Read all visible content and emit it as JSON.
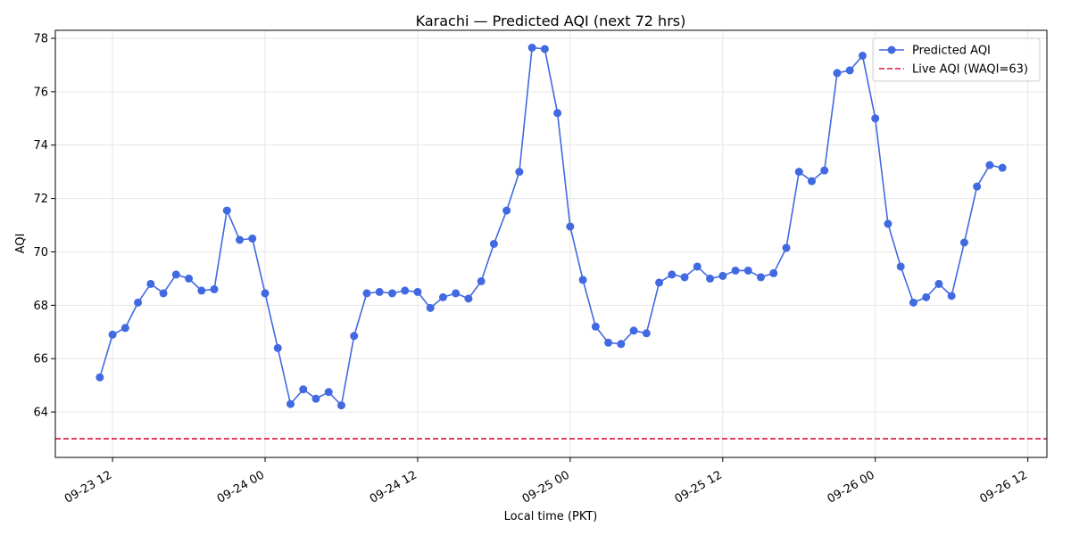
{
  "chart_data": {
    "type": "line",
    "title": "Karachi — Predicted AQI (next 72 hrs)",
    "xlabel": "Local time (PKT)",
    "ylabel": "AQI",
    "x_unit": "hours",
    "xlim": [
      -4.5,
      73.5
    ],
    "ylim": [
      62.3,
      78.3
    ],
    "x_ticks": [
      {
        "t": 0,
        "label": "09-23 12"
      },
      {
        "t": 12,
        "label": "09-24 00"
      },
      {
        "t": 24,
        "label": "09-24 12"
      },
      {
        "t": 36,
        "label": "09-25 00"
      },
      {
        "t": 48,
        "label": "09-25 12"
      },
      {
        "t": 60,
        "label": "09-26 00"
      },
      {
        "t": 72,
        "label": "09-26 12"
      }
    ],
    "y_ticks": [
      64,
      66,
      68,
      70,
      72,
      74,
      76,
      78
    ],
    "grid": true,
    "legend_position": "top-right",
    "series": [
      {
        "name": "Predicted AQI",
        "color": "#4169e1",
        "marker": "circle",
        "x_start": -1,
        "x_step": 1,
        "values": [
          65.3,
          66.9,
          67.15,
          68.1,
          68.8,
          68.45,
          69.15,
          69.0,
          68.55,
          68.6,
          71.55,
          70.45,
          70.5,
          68.45,
          66.4,
          64.3,
          64.85,
          64.5,
          64.75,
          64.25,
          66.85,
          68.45,
          68.5,
          68.45,
          68.55,
          68.5,
          67.9,
          68.3,
          68.45,
          68.25,
          68.9,
          70.3,
          71.55,
          73.0,
          77.65,
          77.6,
          75.2,
          70.95,
          68.95,
          67.2,
          66.6,
          66.55,
          67.05,
          66.95,
          68.85,
          69.15,
          69.05,
          69.45,
          69.0,
          69.1,
          69.3,
          69.3,
          69.05,
          69.2,
          70.15,
          73.0,
          72.65,
          73.05,
          76.7,
          76.8,
          77.35,
          75.0,
          71.05,
          69.45,
          68.1,
          68.3,
          68.8,
          68.35,
          70.35,
          72.45,
          73.25,
          73.15
        ]
      }
    ],
    "reference_lines": [
      {
        "name": "Live AQI (WAQI=63)",
        "y": 63,
        "color": "#dc143c",
        "style": "dashed"
      }
    ]
  }
}
